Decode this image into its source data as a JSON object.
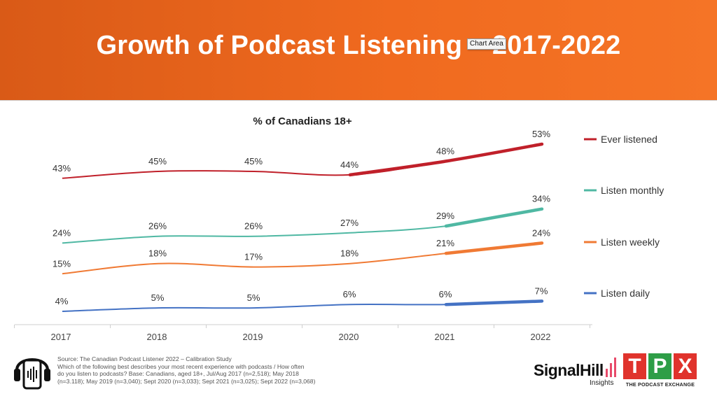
{
  "page": {
    "title": "Growth of Podcast Listening – 2017-2022",
    "tooltip": "Chart Area"
  },
  "chart_data": {
    "type": "line",
    "title": "% of Canadians 18+",
    "categories": [
      "2017",
      "2018",
      "2019",
      "2020",
      "2021",
      "2022"
    ],
    "ylim": [
      0,
      60
    ],
    "grid": false,
    "legend": "right",
    "series": [
      {
        "name": "Ever listened",
        "values": [
          43,
          45,
          45,
          44,
          48,
          53
        ],
        "labels": [
          "43%",
          "45%",
          "45%",
          "44%",
          "48%",
          "53%"
        ],
        "color": "#c0202a",
        "emphasis_from": 3
      },
      {
        "name": "Listen monthly",
        "values": [
          24,
          26,
          26,
          27,
          29,
          34
        ],
        "labels": [
          "24%",
          "26%",
          "26%",
          "27%",
          "29%",
          "34%"
        ],
        "color": "#4fb8a3",
        "emphasis_from": 4
      },
      {
        "name": "Listen weekly",
        "values": [
          15,
          18,
          17,
          18,
          21,
          24
        ],
        "labels": [
          "15%",
          "18%",
          "17%",
          "18%",
          "21%",
          "24%"
        ],
        "color": "#f07a34",
        "emphasis_from": 4
      },
      {
        "name": "Listen daily",
        "values": [
          4,
          5,
          5,
          6,
          6,
          7
        ],
        "labels": [
          "4%",
          "5%",
          "5%",
          "6%",
          "6%",
          "7%"
        ],
        "color": "#4472c4",
        "emphasis_from": 4
      }
    ]
  },
  "footer": {
    "source_lines": [
      "Source: The Canadian Podcast Listener 2022 – Calibration Study",
      "Which of the following best describes your most recent experience with podcasts / How often",
      "do you listen to podcasts? Base: Canadians, aged 18+, Jul/Aug 2017 (n=2,518); May 2018",
      "(n=3.118); May 2019 (n=3,040); Sept 2020 (n=3,033); Sept 2021 (n=3,025); Sept 2022 (n=3,068)"
    ]
  },
  "logos": {
    "signal_name": "SignalHill",
    "signal_sub": "Insights",
    "tpx_letters": [
      "T",
      "P",
      "X"
    ],
    "tpx_sub": "THE PODCAST EXCHANGE",
    "tpx_colors": [
      "#e0332c",
      "#2e9e47",
      "#e0332c"
    ]
  }
}
